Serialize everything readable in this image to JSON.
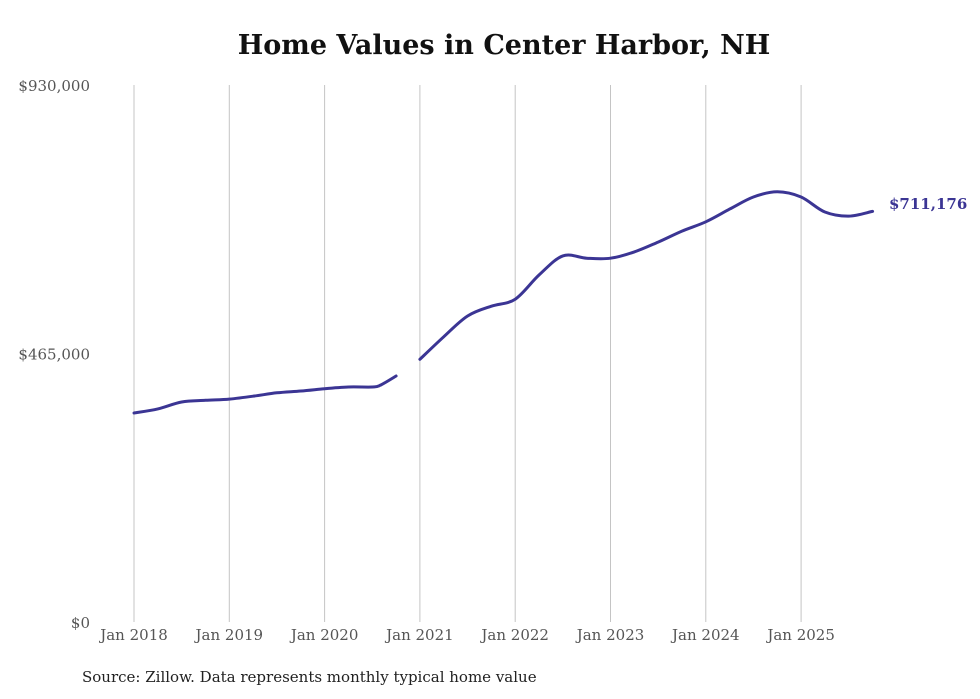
{
  "chart_data": {
    "type": "line",
    "title": "Home Values in Center Harbor, NH",
    "xlabel": "",
    "ylabel": "",
    "ylim": [
      0,
      930000
    ],
    "yticks": [
      "$0",
      "$465,000",
      "$930,000"
    ],
    "ytick_values": [
      0,
      465000,
      930000
    ],
    "xticks": [
      "Jan 2018",
      "Jan 2019",
      "Jan 2020",
      "Jan 2021",
      "Jan 2022",
      "Jan 2023",
      "Jan 2024",
      "Jan 2025"
    ],
    "grid": "vertical",
    "series": [
      {
        "name": "Typical home value",
        "color": "#3b3594",
        "note": "line has a gap between approx. Nov 2020 and Dec 2020",
        "points": [
          {
            "month": "2018-01",
            "value": 362000
          },
          {
            "month": "2018-04",
            "value": 369000
          },
          {
            "month": "2018-07",
            "value": 381000
          },
          {
            "month": "2018-10",
            "value": 384000
          },
          {
            "month": "2019-01",
            "value": 386000
          },
          {
            "month": "2019-04",
            "value": 391000
          },
          {
            "month": "2019-07",
            "value": 397000
          },
          {
            "month": "2019-10",
            "value": 400000
          },
          {
            "month": "2020-01",
            "value": 404000
          },
          {
            "month": "2020-04",
            "value": 407000
          },
          {
            "month": "2020-07",
            "value": 407000
          },
          {
            "month": "2020-08",
            "value": 410000
          },
          {
            "month": "2020-10",
            "value": 426000
          },
          {
            "month": "2021-01",
            "value": 455000
          },
          {
            "month": "2021-04",
            "value": 494000
          },
          {
            "month": "2021-07",
            "value": 530000
          },
          {
            "month": "2021-10",
            "value": 547000
          },
          {
            "month": "2022-01",
            "value": 559000
          },
          {
            "month": "2022-04",
            "value": 601000
          },
          {
            "month": "2022-07",
            "value": 634000
          },
          {
            "month": "2022-10",
            "value": 630000
          },
          {
            "month": "2023-01",
            "value": 630000
          },
          {
            "month": "2023-04",
            "value": 641000
          },
          {
            "month": "2023-07",
            "value": 658000
          },
          {
            "month": "2023-10",
            "value": 677000
          },
          {
            "month": "2024-01",
            "value": 693000
          },
          {
            "month": "2024-04",
            "value": 715000
          },
          {
            "month": "2024-07",
            "value": 736000
          },
          {
            "month": "2024-10",
            "value": 745000
          },
          {
            "month": "2025-01",
            "value": 736000
          },
          {
            "month": "2025-04",
            "value": 710000
          },
          {
            "month": "2025-07",
            "value": 703000
          },
          {
            "month": "2025-10",
            "value": 711176
          }
        ]
      }
    ],
    "end_label": "$711,176",
    "source": "Source: Zillow. Data represents monthly typical home value"
  }
}
